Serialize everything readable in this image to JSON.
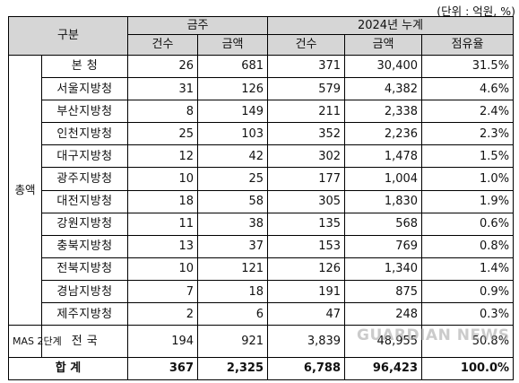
{
  "unit_note": "(단위 : 억원, %)",
  "header": {
    "category": "구분",
    "this_week": "금주",
    "ytd": "2024년 누계",
    "count": "건수",
    "amount": "금액",
    "count2": "건수",
    "amount2": "금액",
    "share": "점유율"
  },
  "group_total": "총액",
  "group_mas": "MAS 2단계",
  "rows": [
    {
      "name": "본 청",
      "wc": "26",
      "wa": "681",
      "yc": "371",
      "ya": "30,400",
      "sh": "31.5%"
    },
    {
      "name": "서울지방청",
      "wc": "31",
      "wa": "126",
      "yc": "579",
      "ya": "4,382",
      "sh": "4.6%"
    },
    {
      "name": "부산지방청",
      "wc": "8",
      "wa": "149",
      "yc": "211",
      "ya": "2,338",
      "sh": "2.4%"
    },
    {
      "name": "인천지방청",
      "wc": "25",
      "wa": "103",
      "yc": "352",
      "ya": "2,236",
      "sh": "2.3%"
    },
    {
      "name": "대구지방청",
      "wc": "12",
      "wa": "42",
      "yc": "302",
      "ya": "1,478",
      "sh": "1.5%"
    },
    {
      "name": "광주지방청",
      "wc": "10",
      "wa": "25",
      "yc": "177",
      "ya": "1,004",
      "sh": "1.0%"
    },
    {
      "name": "대전지방청",
      "wc": "18",
      "wa": "58",
      "yc": "305",
      "ya": "1,830",
      "sh": "1.9%"
    },
    {
      "name": "강원지방청",
      "wc": "11",
      "wa": "38",
      "yc": "135",
      "ya": "568",
      "sh": "0.6%"
    },
    {
      "name": "충북지방청",
      "wc": "13",
      "wa": "37",
      "yc": "153",
      "ya": "769",
      "sh": "0.8%"
    },
    {
      "name": "전북지방청",
      "wc": "10",
      "wa": "121",
      "yc": "126",
      "ya": "1,340",
      "sh": "1.4%"
    },
    {
      "name": "경남지방청",
      "wc": "7",
      "wa": "18",
      "yc": "191",
      "ya": "875",
      "sh": "0.9%"
    },
    {
      "name": "제주지방청",
      "wc": "2",
      "wa": "6",
      "yc": "47",
      "ya": "248",
      "sh": "0.3%"
    }
  ],
  "mas_row": {
    "name": "전 국",
    "wc": "194",
    "wa": "921",
    "yc": "3,839",
    "ya": "48,955",
    "sh": "50.8%"
  },
  "total_row": {
    "name": "합 계",
    "wc": "367",
    "wa": "2,325",
    "yc": "6,788",
    "ya": "96,423",
    "sh": "100.0%"
  },
  "watermark": "GUARDIAN NEWS"
}
